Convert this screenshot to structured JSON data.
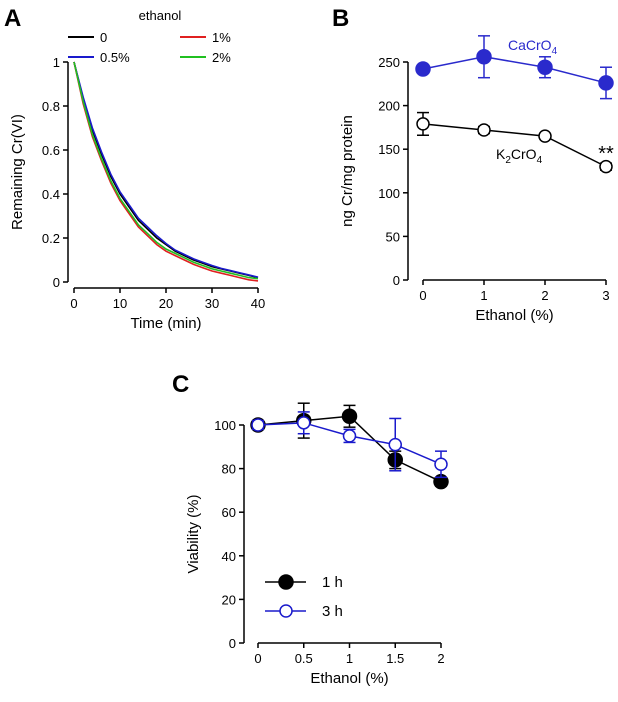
{
  "chart_data": [
    {
      "panel": "A",
      "type": "line",
      "xlabel": "Time (min)",
      "ylabel": "Remaining Cr(VI)",
      "xlim": [
        0,
        40
      ],
      "ylim": [
        0,
        1
      ],
      "xticks": [
        "0",
        "10",
        "20",
        "30",
        "40"
      ],
      "yticks": [
        "0",
        "0.2",
        "0.4",
        "0.6",
        "0.8",
        "1"
      ],
      "legend_title": "ethanol",
      "x": [
        0,
        2,
        4,
        6,
        8,
        10,
        12,
        14,
        16,
        18,
        20,
        22,
        24,
        26,
        28,
        30,
        32,
        34,
        36,
        38,
        40
      ],
      "series": [
        {
          "name": "0",
          "color": "#000000",
          "values": [
            1,
            0.83,
            0.69,
            0.58,
            0.48,
            0.4,
            0.34,
            0.28,
            0.24,
            0.2,
            0.17,
            0.14,
            0.12,
            0.1,
            0.085,
            0.07,
            0.06,
            0.05,
            0.04,
            0.03,
            0.02
          ]
        },
        {
          "name": "0.5%",
          "color": "#1a1acc",
          "values": [
            1,
            0.84,
            0.7,
            0.59,
            0.49,
            0.41,
            0.35,
            0.29,
            0.25,
            0.21,
            0.175,
            0.145,
            0.125,
            0.105,
            0.09,
            0.075,
            0.062,
            0.052,
            0.042,
            0.032,
            0.022
          ]
        },
        {
          "name": "1%",
          "color": "#e02020",
          "values": [
            1,
            0.81,
            0.66,
            0.55,
            0.45,
            0.37,
            0.31,
            0.25,
            0.21,
            0.17,
            0.14,
            0.12,
            0.1,
            0.08,
            0.065,
            0.05,
            0.04,
            0.03,
            0.02,
            0.01,
            0.005
          ]
        },
        {
          "name": "2%",
          "color": "#20c020",
          "values": [
            1,
            0.82,
            0.67,
            0.56,
            0.46,
            0.38,
            0.32,
            0.26,
            0.22,
            0.18,
            0.15,
            0.13,
            0.11,
            0.09,
            0.075,
            0.06,
            0.05,
            0.04,
            0.03,
            0.02,
            0.015
          ]
        }
      ]
    },
    {
      "panel": "B",
      "type": "line",
      "xlabel": "Ethanol (%)",
      "ylabel": "ng Cr/mg protein",
      "xlim": [
        0,
        3
      ],
      "ylim": [
        0,
        250
      ],
      "xticks": [
        "0",
        "1",
        "2",
        "3"
      ],
      "yticks": [
        "0",
        "50",
        "100",
        "150",
        "200",
        "250"
      ],
      "x": [
        0,
        1,
        2,
        3
      ],
      "series": [
        {
          "name": "CaCrO4",
          "label_main": "CaCrO",
          "label_sub": "4",
          "color": "#2a2acc",
          "filled": true,
          "values": [
            242,
            256,
            244,
            226
          ],
          "errors": [
            4,
            24,
            12,
            18
          ]
        },
        {
          "name": "K2CrO4",
          "label_parts": [
            "K",
            "2",
            "CrO",
            "4"
          ],
          "color": "#000000",
          "filled": false,
          "values": [
            179,
            172,
            165,
            130
          ],
          "errors": [
            13,
            4,
            2,
            4
          ]
        }
      ],
      "annotation": "**"
    },
    {
      "panel": "C",
      "type": "line",
      "xlabel": "Ethanol (%)",
      "ylabel": "Viability (%)",
      "xlim": [
        0,
        2
      ],
      "ylim": [
        0,
        100
      ],
      "xticks": [
        "0",
        "0.5",
        "1",
        "1.5",
        "2"
      ],
      "yticks": [
        "0",
        "20",
        "40",
        "60",
        "80",
        "100"
      ],
      "x": [
        0,
        0.5,
        1,
        1.5,
        2
      ],
      "legend": "lower-left",
      "series": [
        {
          "name": "1 h",
          "color": "#000000",
          "filled": true,
          "values": [
            100,
            102,
            104,
            84,
            74
          ],
          "errors": [
            2,
            8,
            5,
            4,
            2
          ]
        },
        {
          "name": "3 h",
          "color": "#1a1acc",
          "filled": false,
          "values": [
            100,
            101,
            95,
            91,
            82
          ],
          "errors": [
            2,
            5,
            3,
            12,
            6
          ]
        }
      ]
    }
  ],
  "panel_labels": [
    "A",
    "B",
    "C"
  ]
}
